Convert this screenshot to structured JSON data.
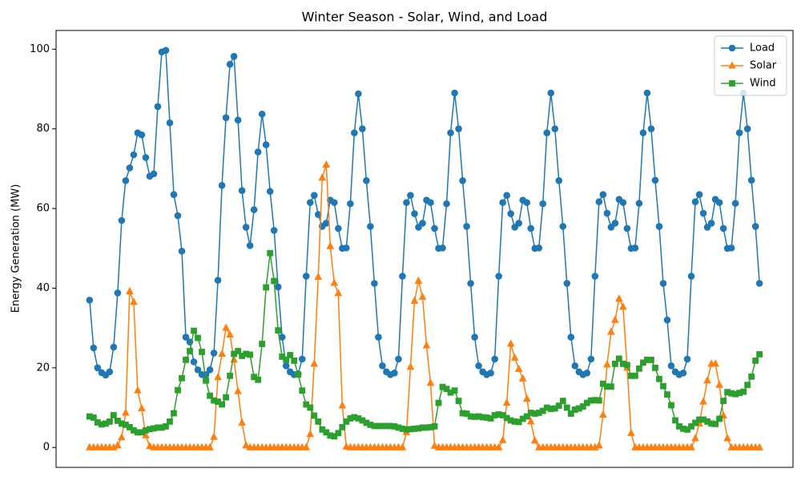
{
  "chart_data": {
    "type": "line",
    "title": "Winter Season - Solar, Wind, and Load",
    "y_label": "Energy Generation (MW)",
    "ylim": [
      -4.99,
      104.7
    ],
    "yticks": [
      0,
      20,
      40,
      60,
      80,
      100
    ],
    "legend": "upper right",
    "grid": false,
    "series": [
      {
        "name": "Load",
        "color": "#1f77b4",
        "marker": "circle",
        "values": [
          37,
          25,
          20,
          18.8,
          18.2,
          19,
          25.2,
          38.8,
          57,
          67,
          70.2,
          73.5,
          79,
          78.5,
          72.8,
          68.1,
          68.7,
          85.6,
          99.3,
          99.7,
          81.5,
          63.5,
          58.2,
          49.3,
          27.7,
          26.5,
          21.5,
          19.5,
          18.3,
          18.3,
          19.5,
          23.7,
          42,
          65.8,
          82.8,
          96.2,
          98.2,
          82.2,
          64.5,
          55.3,
          50.7,
          59.7,
          74.2,
          83.7,
          76,
          64.3,
          54.5,
          40.3,
          27.7,
          20.5,
          19,
          18.3,
          18.5,
          22.2,
          43,
          61.5,
          63.3,
          58.5,
          55.5,
          56.3,
          62.1,
          61.5,
          55,
          50,
          50.1,
          61.2,
          79,
          88.8,
          80,
          67,
          55.5,
          41.2,
          27.7,
          20.5,
          19,
          18.3,
          18.7,
          22.2,
          43,
          61.5,
          63.3,
          58.7,
          55.3,
          56.3,
          62.1,
          61.5,
          55,
          50,
          50.1,
          61.2,
          79,
          89,
          80,
          67,
          55.5,
          41.2,
          27.7,
          20.5,
          19,
          18.3,
          18.7,
          22.2,
          43,
          61.5,
          63.3,
          58.7,
          55.3,
          56.3,
          62.1,
          61.5,
          55,
          50,
          50.1,
          61.2,
          79,
          89,
          80,
          67,
          55.5,
          41.2,
          27.7,
          20.5,
          19,
          18.3,
          18.7,
          22.2,
          43,
          61.7,
          63.5,
          58.8,
          55.3,
          56.3,
          62.3,
          61.5,
          55,
          50,
          50.1,
          61.3,
          79,
          89,
          80,
          67.1,
          55.5,
          41.2,
          32,
          20.5,
          19,
          18.3,
          18.7,
          22.2,
          43,
          61.7,
          63.5,
          58.8,
          55.3,
          56.3,
          62.3,
          61.5,
          55,
          50,
          50.1,
          61.3,
          79,
          89,
          80,
          67.1,
          55.5,
          41.2
        ]
      },
      {
        "name": "Solar",
        "color": "#ff7f0e",
        "marker": "triangle",
        "values": [
          0,
          0,
          0,
          0,
          0,
          0,
          0,
          0.5,
          2.5,
          8.7,
          39.2,
          36.5,
          14.3,
          9.8,
          3,
          0.3,
          0,
          0,
          0,
          0,
          0,
          0,
          0,
          0,
          0,
          0,
          0,
          0,
          0,
          0,
          0,
          2.6,
          17.6,
          23.5,
          30,
          28.3,
          22,
          14.1,
          6.2,
          0.5,
          0,
          0,
          0,
          0,
          0,
          0,
          0,
          0,
          0,
          0,
          0,
          0,
          0,
          0,
          0,
          3.3,
          21,
          42.8,
          67.7,
          71,
          50.5,
          41.3,
          38.7,
          10.5,
          0.2,
          0,
          0,
          0,
          0,
          0,
          0,
          0,
          0,
          0,
          0,
          0,
          0,
          0,
          0,
          3.8,
          20.2,
          36.8,
          41.8,
          37.8,
          25.6,
          16.2,
          0.4,
          0,
          0,
          0,
          0,
          0,
          0,
          0,
          0,
          0,
          0,
          0,
          0,
          0,
          0,
          0,
          0,
          1.8,
          11.2,
          26,
          22.5,
          19.7,
          17.3,
          12.2,
          6.5,
          1.7,
          0,
          0,
          0,
          0,
          0,
          0,
          0,
          0,
          0,
          0,
          0,
          0,
          0,
          0,
          0,
          0.5,
          8.2,
          20.8,
          29,
          32,
          37.3,
          35.3,
          20,
          3.6,
          0,
          0,
          0,
          0,
          0,
          0,
          0,
          0,
          0,
          0,
          0,
          0,
          0,
          0,
          0,
          2.3,
          6,
          11.5,
          16.8,
          21,
          21,
          15.7,
          8,
          2.3,
          0,
          0,
          0,
          0,
          0,
          0,
          0,
          0
        ]
      },
      {
        "name": "Wind",
        "color": "#2ca02c",
        "marker": "square",
        "values": [
          7.8,
          7.5,
          6.3,
          5.8,
          6,
          6.5,
          8.1,
          6.7,
          6,
          5.7,
          5.1,
          4.3,
          3.8,
          3.8,
          4.3,
          4.6,
          4.8,
          5,
          5,
          5.3,
          6.5,
          8.6,
          14.4,
          17.4,
          22,
          24.2,
          29.3,
          27.5,
          24,
          16.8,
          13,
          11.8,
          11.5,
          10.8,
          12.6,
          18,
          23.5,
          24.2,
          23,
          23.5,
          23.3,
          17.7,
          17,
          26,
          40.2,
          48.8,
          41.8,
          29.4,
          22.8,
          22,
          23.2,
          21.8,
          18.3,
          14.3,
          10.8,
          10,
          8,
          6.5,
          4.5,
          3.8,
          3,
          2.8,
          3.6,
          5.1,
          6.5,
          7.3,
          7.6,
          7.3,
          6.8,
          6.2,
          5.7,
          5.4,
          5.4,
          5.4,
          5.4,
          5.4,
          5.3,
          5,
          4.7,
          4.5,
          4.6,
          4.7,
          4.8,
          5,
          5,
          5.1,
          5.3,
          11.2,
          15.2,
          14.7,
          13.8,
          14.3,
          11.7,
          8.6,
          8.5,
          7.8,
          7.7,
          7.8,
          7.6,
          7.5,
          7.3,
          8.1,
          8.3,
          8.1,
          7.4,
          6.8,
          6.5,
          6.4,
          7.2,
          7.8,
          8.7,
          8.5,
          8.7,
          9.2,
          10,
          9.7,
          9.8,
          10.5,
          11.7,
          10,
          8.5,
          9.5,
          9.8,
          10.3,
          11.2,
          11.8,
          11.9,
          11.8,
          16,
          15.3,
          15.3,
          21,
          22.3,
          21,
          20.7,
          18,
          18,
          19.8,
          21.3,
          22,
          22,
          20,
          17.2,
          15.4,
          13.3,
          10.6,
          6.8,
          5.3,
          4.7,
          4.5,
          5.3,
          6.2,
          7,
          7,
          6.5,
          6,
          5.9,
          7.2,
          11.7,
          13.9,
          13.6,
          13.4,
          13.7,
          14,
          15.7,
          17.8,
          21.8,
          23.4
        ]
      }
    ]
  }
}
